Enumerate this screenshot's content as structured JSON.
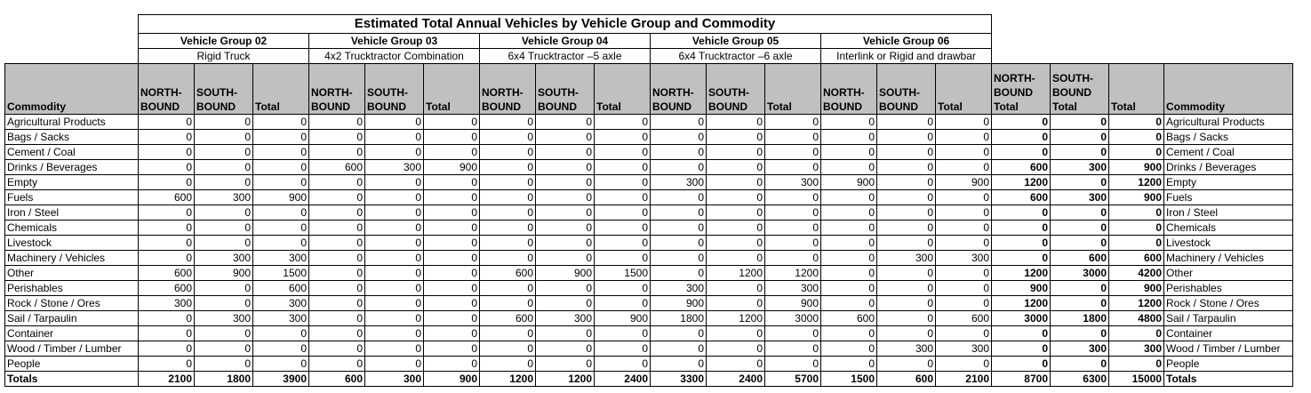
{
  "title": "Estimated Total Annual Vehicles by Vehicle Group and Commodity",
  "groups": [
    {
      "name": "Vehicle Group 02",
      "desc": "Rigid Truck"
    },
    {
      "name": "Vehicle Group 03",
      "desc": "4x2 Trucktractor Combination"
    },
    {
      "name": "Vehicle Group 04",
      "desc": "6x4 Trucktractor –5 axle"
    },
    {
      "name": "Vehicle Group 05",
      "desc": "6x4 Trucktractor –6 axle"
    },
    {
      "name": "Vehicle Group 06",
      "desc": "Interlink or Rigid and drawbar"
    }
  ],
  "headers": {
    "commodity": "Commodity",
    "north": "NORTH-BOUND",
    "south": "SOUTH-BOUND",
    "total": "Total",
    "north_total": "NORTH-BOUND Total",
    "south_total": "SOUTH-BOUND Total",
    "grand_total": "Total",
    "commodity_right": "Commodity"
  },
  "rows": [
    {
      "commodity": "Agricultural Products",
      "values": [
        0,
        0,
        0,
        0,
        0,
        0,
        0,
        0,
        0,
        0,
        0,
        0,
        0,
        0,
        0
      ],
      "nb": 0,
      "sb": 0,
      "total": 0
    },
    {
      "commodity": "Bags / Sacks",
      "values": [
        0,
        0,
        0,
        0,
        0,
        0,
        0,
        0,
        0,
        0,
        0,
        0,
        0,
        0,
        0
      ],
      "nb": 0,
      "sb": 0,
      "total": 0
    },
    {
      "commodity": "Cement / Coal",
      "values": [
        0,
        0,
        0,
        0,
        0,
        0,
        0,
        0,
        0,
        0,
        0,
        0,
        0,
        0,
        0
      ],
      "nb": 0,
      "sb": 0,
      "total": 0
    },
    {
      "commodity": "Drinks / Beverages",
      "values": [
        0,
        0,
        0,
        600,
        300,
        900,
        0,
        0,
        0,
        0,
        0,
        0,
        0,
        0,
        0
      ],
      "nb": 600,
      "sb": 300,
      "total": 900
    },
    {
      "commodity": "Empty",
      "values": [
        0,
        0,
        0,
        0,
        0,
        0,
        0,
        0,
        0,
        300,
        0,
        300,
        900,
        0,
        900
      ],
      "nb": 1200,
      "sb": 0,
      "total": 1200
    },
    {
      "commodity": "Fuels",
      "values": [
        600,
        300,
        900,
        0,
        0,
        0,
        0,
        0,
        0,
        0,
        0,
        0,
        0,
        0,
        0
      ],
      "nb": 600,
      "sb": 300,
      "total": 900
    },
    {
      "commodity": "Iron / Steel",
      "values": [
        0,
        0,
        0,
        0,
        0,
        0,
        0,
        0,
        0,
        0,
        0,
        0,
        0,
        0,
        0
      ],
      "nb": 0,
      "sb": 0,
      "total": 0
    },
    {
      "commodity": "Chemicals",
      "values": [
        0,
        0,
        0,
        0,
        0,
        0,
        0,
        0,
        0,
        0,
        0,
        0,
        0,
        0,
        0
      ],
      "nb": 0,
      "sb": 0,
      "total": 0
    },
    {
      "commodity": "Livestock",
      "values": [
        0,
        0,
        0,
        0,
        0,
        0,
        0,
        0,
        0,
        0,
        0,
        0,
        0,
        0,
        0
      ],
      "nb": 0,
      "sb": 0,
      "total": 0
    },
    {
      "commodity": "Machinery / Vehicles",
      "values": [
        0,
        300,
        300,
        0,
        0,
        0,
        0,
        0,
        0,
        0,
        0,
        0,
        0,
        300,
        300
      ],
      "nb": 0,
      "sb": 600,
      "total": 600
    },
    {
      "commodity": "Other",
      "values": [
        600,
        900,
        1500,
        0,
        0,
        0,
        600,
        900,
        1500,
        0,
        1200,
        1200,
        0,
        0,
        0
      ],
      "nb": 1200,
      "sb": 3000,
      "total": 4200
    },
    {
      "commodity": "Perishables",
      "values": [
        600,
        0,
        600,
        0,
        0,
        0,
        0,
        0,
        0,
        300,
        0,
        300,
        0,
        0,
        0
      ],
      "nb": 900,
      "sb": 0,
      "total": 900
    },
    {
      "commodity": "Rock / Stone / Ores",
      "values": [
        300,
        0,
        300,
        0,
        0,
        0,
        0,
        0,
        0,
        900,
        0,
        900,
        0,
        0,
        0
      ],
      "nb": 1200,
      "sb": 0,
      "total": 1200
    },
    {
      "commodity": "Sail / Tarpaulin",
      "values": [
        0,
        300,
        300,
        0,
        0,
        0,
        600,
        300,
        900,
        1800,
        1200,
        3000,
        600,
        0,
        600
      ],
      "nb": 3000,
      "sb": 1800,
      "total": 4800
    },
    {
      "commodity": "Container",
      "values": [
        0,
        0,
        0,
        0,
        0,
        0,
        0,
        0,
        0,
        0,
        0,
        0,
        0,
        0,
        0
      ],
      "nb": 0,
      "sb": 0,
      "total": 0
    },
    {
      "commodity": "Wood / Timber / Lumber",
      "values": [
        0,
        0,
        0,
        0,
        0,
        0,
        0,
        0,
        0,
        0,
        0,
        0,
        0,
        300,
        300
      ],
      "nb": 0,
      "sb": 300,
      "total": 300
    },
    {
      "commodity": "People",
      "values": [
        0,
        0,
        0,
        0,
        0,
        0,
        0,
        0,
        0,
        0,
        0,
        0,
        0,
        0,
        0
      ],
      "nb": 0,
      "sb": 0,
      "total": 0
    }
  ],
  "totals": {
    "label": "Totals",
    "values": [
      2100,
      1800,
      3900,
      600,
      300,
      900,
      1200,
      1200,
      2400,
      3300,
      2400,
      5700,
      1500,
      600,
      2100
    ],
    "nb": 8700,
    "sb": 6300,
    "total": 15000
  }
}
